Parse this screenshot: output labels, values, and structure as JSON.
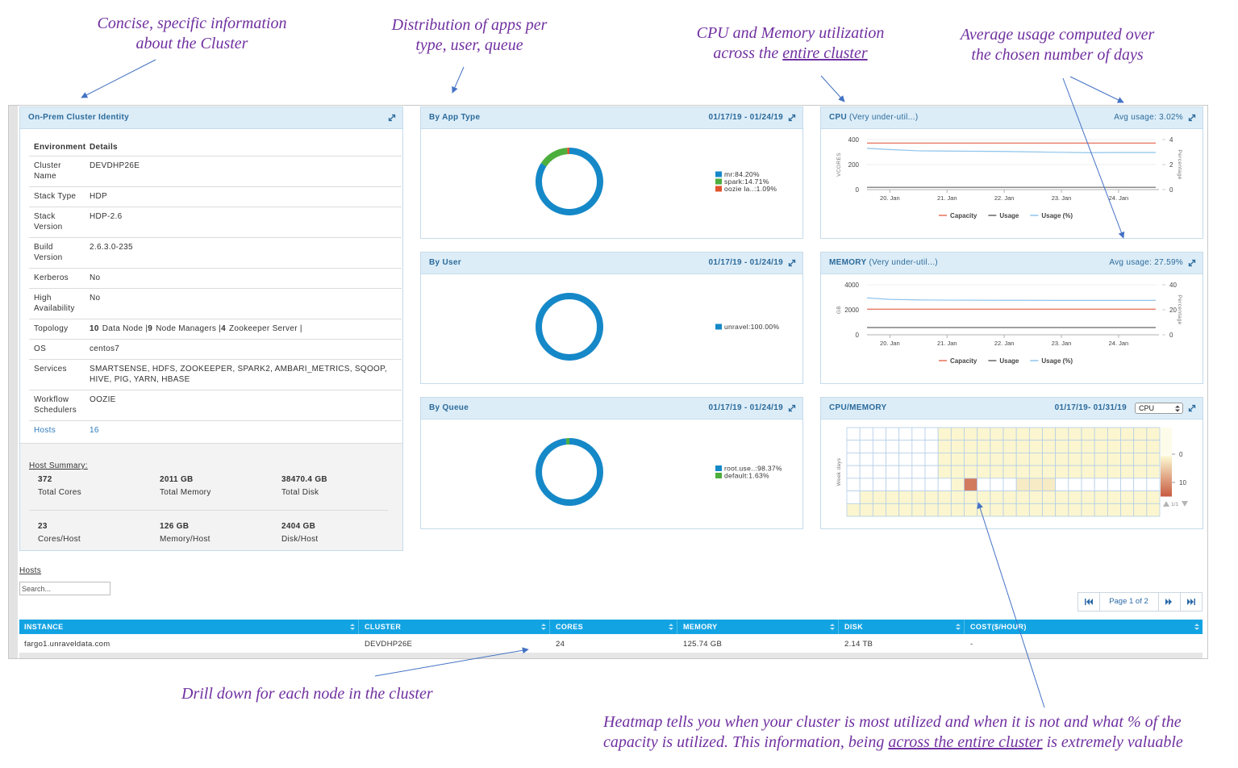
{
  "annotations": [
    {
      "lines": [
        [
          "Concise, specific information"
        ],
        [
          "about the Cluster"
        ]
      ]
    },
    {
      "lines": [
        [
          "Distribution of apps per"
        ],
        [
          "type, user, queue"
        ]
      ]
    },
    {
      "lines": [
        [
          "CPU and Memory utilization"
        ],
        [
          "across the ",
          {
            "text": "entire cluster",
            "underline": true
          }
        ]
      ]
    },
    {
      "lines": [
        [
          "Average usage computed over"
        ],
        [
          "the chosen number of days"
        ]
      ]
    },
    {
      "lines": [
        [
          "Drill down for each node in the cluster"
        ]
      ]
    },
    {
      "lines": [
        [
          "Heatmap tells you when your cluster is most utilized and when it is not and what % of the"
        ],
        [
          "capacity is utilized. This information, being ",
          {
            "text": "across the entire cluster",
            "underline": true
          },
          " is extremely valuable"
        ]
      ]
    }
  ],
  "cluster_identity": {
    "title": "On-Prem Cluster Identity",
    "columns": [
      "Environment",
      "Details"
    ],
    "rows": [
      [
        "Cluster Name",
        "DEVDHP26E"
      ],
      [
        "Stack Type",
        "HDP"
      ],
      [
        "Stack Version",
        "HDP-2.6"
      ],
      [
        "Build Version",
        "2.6.3.0-235"
      ],
      [
        "Kerberos",
        "No"
      ],
      [
        "High Availability",
        "No"
      ],
      [
        "Topology",
        [
          {
            "count": 10,
            "label": "Data Node |"
          },
          {
            "count": 9,
            "label": "Node Managers |"
          },
          {
            "count": 4,
            "label": "Zookeeper Server |"
          }
        ]
      ],
      [
        "OS",
        "centos7"
      ],
      [
        "Services",
        "SMARTSENSE, HDFS, ZOOKEEPER, SPARK2, AMBARI_METRICS, SQOOP, HIVE, PIG, YARN, HBASE"
      ],
      [
        "Workflow Schedulers",
        "OOZIE"
      ],
      [
        "Hosts",
        "16"
      ]
    ]
  },
  "host_summary": {
    "title": "Host Summary:",
    "items": [
      {
        "value": "372",
        "label": "Total Cores"
      },
      {
        "value": "2011 GB",
        "label": "Total Memory"
      },
      {
        "value": "38470.4 GB",
        "label": "Total Disk"
      },
      {
        "value": "23",
        "label": "Cores/Host"
      },
      {
        "value": "126 GB",
        "label": "Memory/Host"
      },
      {
        "value": "2404 GB",
        "label": "Disk/Host"
      }
    ]
  },
  "donut_panels": [
    {
      "title": "By App Type",
      "date_range": "01/17/19 - 01/24/19",
      "chart_data": {
        "type": "donut",
        "values": [
          84.2,
          14.71,
          1.09
        ],
        "value_labels": [
          "mr:84.20%",
          "spark:14.71%",
          "oozie la..:1.09%"
        ],
        "colors": [
          "#1588c8",
          "#4cae3c",
          "#e0532c"
        ]
      }
    },
    {
      "title": "By User",
      "date_range": "01/17/19 - 01/24/19",
      "chart_data": {
        "type": "donut",
        "values": [
          100
        ],
        "value_labels": [
          "unravel:100.00%"
        ],
        "colors": [
          "#1588c8"
        ]
      }
    },
    {
      "title": "By Queue",
      "date_range": "01/17/19 - 01/24/19",
      "chart_data": {
        "type": "donut",
        "values": [
          98.37,
          1.63
        ],
        "value_labels": [
          "root.use..:98.37%",
          "default:1.63%"
        ],
        "colors": [
          "#1588c8",
          "#4cae3c"
        ]
      }
    }
  ],
  "usage_panels": [
    {
      "title": "CPU",
      "status": "(Very under-util...)",
      "avg_usage": "Avg usage: 3.02%",
      "chart_data": {
        "type": "line",
        "y_label": "VCORES",
        "y2_label": "Percentage",
        "x": [
          19.6,
          20.0,
          20.5,
          21.0,
          22.0,
          23.0,
          23.5,
          24.0,
          24.65
        ],
        "xlim": [
          19.6,
          24.65
        ],
        "xticks": [
          {
            "value": 20,
            "label": "20. Jan"
          },
          {
            "value": 21,
            "label": "21. Jan"
          },
          {
            "value": 22,
            "label": "22. Jan"
          },
          {
            "value": 23,
            "label": "23. Jan"
          },
          {
            "value": 24,
            "label": "24. Jan"
          }
        ],
        "ylim": [
          0,
          400
        ],
        "yticks": [
          0,
          200,
          400
        ],
        "y2lim": [
          0,
          4
        ],
        "y2ticks": [
          0,
          2,
          4
        ],
        "series": [
          {
            "name": "Capacity",
            "color": "#e8705a",
            "values": [
              372,
              372,
              372,
              372,
              372,
              372,
              372,
              372,
              372
            ]
          },
          {
            "name": "Usage",
            "color": "#666666",
            "values": [
              18,
              18,
              18,
              18,
              18,
              18,
              18,
              18,
              18
            ]
          },
          {
            "name": "Usage (%)",
            "color": "#8ec4ec",
            "axis": "y2",
            "values": [
              3.3,
              3.2,
              3.1,
              3.08,
              3.05,
              2.98,
              2.95,
              2.97,
              2.97
            ]
          }
        ]
      }
    },
    {
      "title": "MEMORY",
      "status": "(Very under-util...)",
      "avg_usage": "Avg usage: 27.59%",
      "chart_data": {
        "type": "line",
        "y_label": "GB",
        "y2_label": "Percentage",
        "x": [
          19.6,
          20.0,
          20.5,
          21.0,
          22.0,
          23.0,
          23.5,
          24.0,
          24.65
        ],
        "xlim": [
          19.6,
          24.65
        ],
        "xticks": [
          {
            "value": 20,
            "label": "20. Jan"
          },
          {
            "value": 21,
            "label": "21. Jan"
          },
          {
            "value": 22,
            "label": "22. Jan"
          },
          {
            "value": 23,
            "label": "23. Jan"
          },
          {
            "value": 24,
            "label": "24. Jan"
          }
        ],
        "ylim": [
          0,
          4000
        ],
        "yticks": [
          0,
          2000,
          4000
        ],
        "y2lim": [
          0,
          40
        ],
        "y2ticks": [
          0,
          20,
          40
        ],
        "series": [
          {
            "name": "Capacity",
            "color": "#e8705a",
            "values": [
              2050,
              2050,
              2050,
              2050,
              2050,
              2050,
              2050,
              2050,
              2050
            ]
          },
          {
            "name": "Usage",
            "color": "#666666",
            "values": [
              580,
              580,
              580,
              580,
              580,
              580,
              580,
              580,
              580
            ]
          },
          {
            "name": "Usage (%)",
            "color": "#8ec4ec",
            "axis": "y2",
            "values": [
              29.5,
              28.3,
              27.9,
              27.7,
              27.6,
              27.5,
              27.5,
              27.5,
              27.5
            ]
          }
        ]
      }
    }
  ],
  "heatmap": {
    "title": "CPU/MEMORY",
    "date_range": "01/17/19- 01/31/19",
    "selector": "CPU",
    "pager": "1/1",
    "chart_data": {
      "type": "heatmap",
      "y_label": "Week days",
      "values": [
        [
          0,
          0,
          0,
          0,
          0,
          0,
          0,
          1,
          1,
          1,
          1,
          1,
          1,
          1,
          1,
          1,
          1,
          1,
          1,
          1,
          1,
          1,
          1,
          1
        ],
        [
          0,
          0,
          0,
          0,
          0,
          0,
          0,
          1,
          1,
          1,
          1,
          1,
          1,
          1,
          1,
          1,
          1,
          1,
          1,
          1,
          1,
          1,
          1,
          1
        ],
        [
          0,
          0,
          0,
          0,
          0,
          0,
          0,
          1,
          1,
          1,
          1,
          1,
          1,
          1,
          1,
          1,
          1,
          1,
          1,
          1,
          1,
          1,
          1,
          1
        ],
        [
          0,
          0,
          0,
          0,
          0,
          0,
          0,
          1,
          1,
          1,
          1,
          1,
          1,
          1,
          1,
          1,
          1,
          1,
          1,
          1,
          1,
          1,
          1,
          1
        ],
        [
          0,
          0,
          0,
          0,
          0,
          0,
          0,
          0,
          1,
          12,
          0,
          0,
          0,
          2,
          2,
          2,
          0,
          0,
          0,
          0,
          0,
          0,
          0,
          0
        ],
        [
          0,
          1,
          1,
          1,
          1,
          1,
          1,
          1,
          1,
          1,
          1,
          1,
          1,
          1,
          1,
          1,
          1,
          1,
          1,
          1,
          1,
          1,
          1,
          1
        ],
        [
          1,
          1,
          1,
          1,
          1,
          1,
          1,
          1,
          1,
          1,
          1,
          1,
          1,
          1,
          1,
          1,
          1,
          1,
          1,
          1,
          1,
          1,
          1,
          1
        ]
      ],
      "clim": [
        0,
        15
      ],
      "colorbar_ticks": [
        0,
        10
      ],
      "colors": [
        "#ffffff",
        "#fbf6cf",
        "#c85a40"
      ],
      "color_values": [
        0,
        1,
        15
      ]
    }
  },
  "hosts": {
    "title": "Hosts",
    "search_placeholder": "Search...",
    "pager": "Page 1 of 2",
    "columns": [
      "INSTANCE",
      "CLUSTER",
      "CORES",
      "MEMORY",
      "DISK",
      "COST($/HOUR)"
    ],
    "rows": [
      [
        "fargo1.unraveldata.com",
        "DEVDHP26E",
        "24",
        "125.74 GB",
        "2.14 TB",
        "-"
      ]
    ]
  }
}
